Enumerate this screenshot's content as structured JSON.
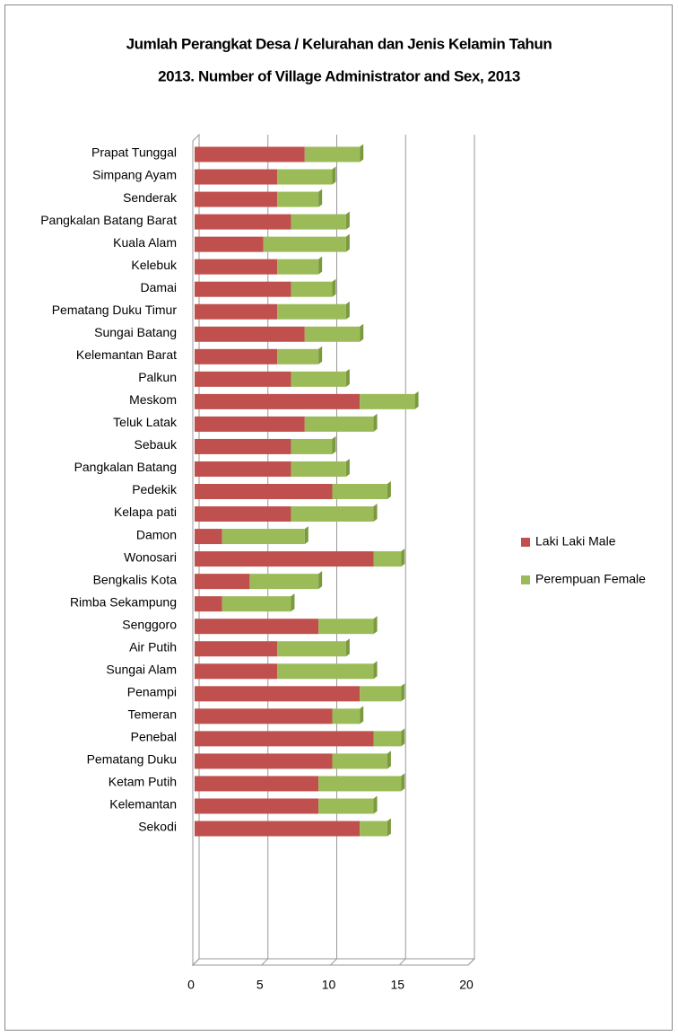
{
  "chart_data": {
    "type": "bar",
    "orientation": "horizontal",
    "stacked": true,
    "title": [
      "Jumlah Perangkat Desa / Kelurahan dan Jenis Kelamin Tahun",
      "2013. Number of Village Administrator and Sex, 2013"
    ],
    "categories": [
      "Prapat Tunggal",
      "Simpang Ayam",
      "Senderak",
      "Pangkalan Batang Barat",
      "Kuala Alam",
      "Kelebuk",
      "Damai",
      "Pematang Duku Timur",
      "Sungai Batang",
      "Kelemantan Barat",
      "Palkun",
      "Meskom",
      "Teluk Latak",
      "Sebauk",
      "Pangkalan Batang",
      "Pedekik",
      "Kelapa pati",
      "Damon",
      "Wonosari",
      "Bengkalis Kota",
      "Rimba Sekampung",
      "Senggoro",
      "Air Putih",
      "Sungai Alam",
      "Penampi",
      "Temeran",
      "Penebal",
      "Pematang Duku",
      "Ketam Putih",
      "Kelemantan",
      "Sekodi"
    ],
    "series": [
      {
        "name": "Laki Laki Male",
        "color": "#c0504d",
        "values": [
          8,
          6,
          6,
          7,
          5,
          6,
          7,
          6,
          8,
          6,
          7,
          12,
          8,
          7,
          7,
          10,
          7,
          2,
          13,
          4,
          2,
          9,
          6,
          6,
          12,
          10,
          13,
          10,
          9,
          9,
          12
        ]
      },
      {
        "name": "Perempuan Female",
        "color": "#9bbb59",
        "values": [
          4,
          4,
          3,
          4,
          6,
          3,
          3,
          5,
          4,
          3,
          4,
          4,
          5,
          3,
          4,
          4,
          6,
          6,
          2,
          5,
          5,
          4,
          5,
          7,
          3,
          2,
          2,
          4,
          6,
          4,
          2
        ]
      }
    ],
    "xlim": [
      0,
      20
    ],
    "xticks": [
      0,
      5,
      10,
      15,
      20
    ],
    "grid": true,
    "legend": "right"
  }
}
